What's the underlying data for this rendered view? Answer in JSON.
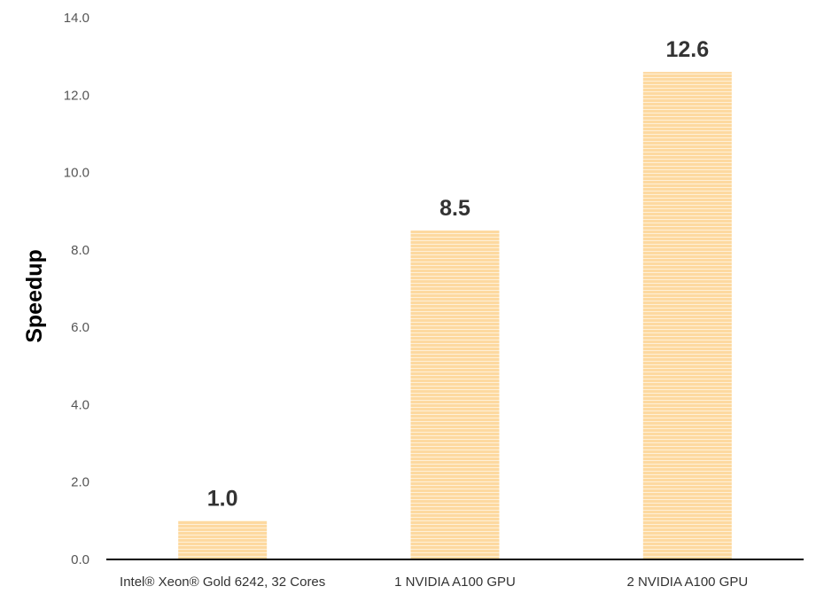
{
  "chart_data": {
    "type": "bar",
    "title": "",
    "xlabel": "",
    "ylabel": "Speedup",
    "categories": [
      "Intel® Xeon® Gold 6242, 32 Cores",
      "1 NVIDIA A100 GPU",
      "2 NVIDIA A100 GPU"
    ],
    "values": [
      1.0,
      8.5,
      12.6
    ],
    "data_labels": [
      "1.0",
      "8.5",
      "12.6"
    ],
    "ylim": [
      0,
      14
    ],
    "yticks": [
      "0.0",
      "2.0",
      "4.0",
      "6.0",
      "8.0",
      "10.0",
      "12.0",
      "14.0"
    ],
    "grid": false,
    "legend": "none",
    "colors": {
      "bar": "#fdd9a0",
      "bar_stripe": "#ffffff",
      "axis": "#000000"
    }
  }
}
